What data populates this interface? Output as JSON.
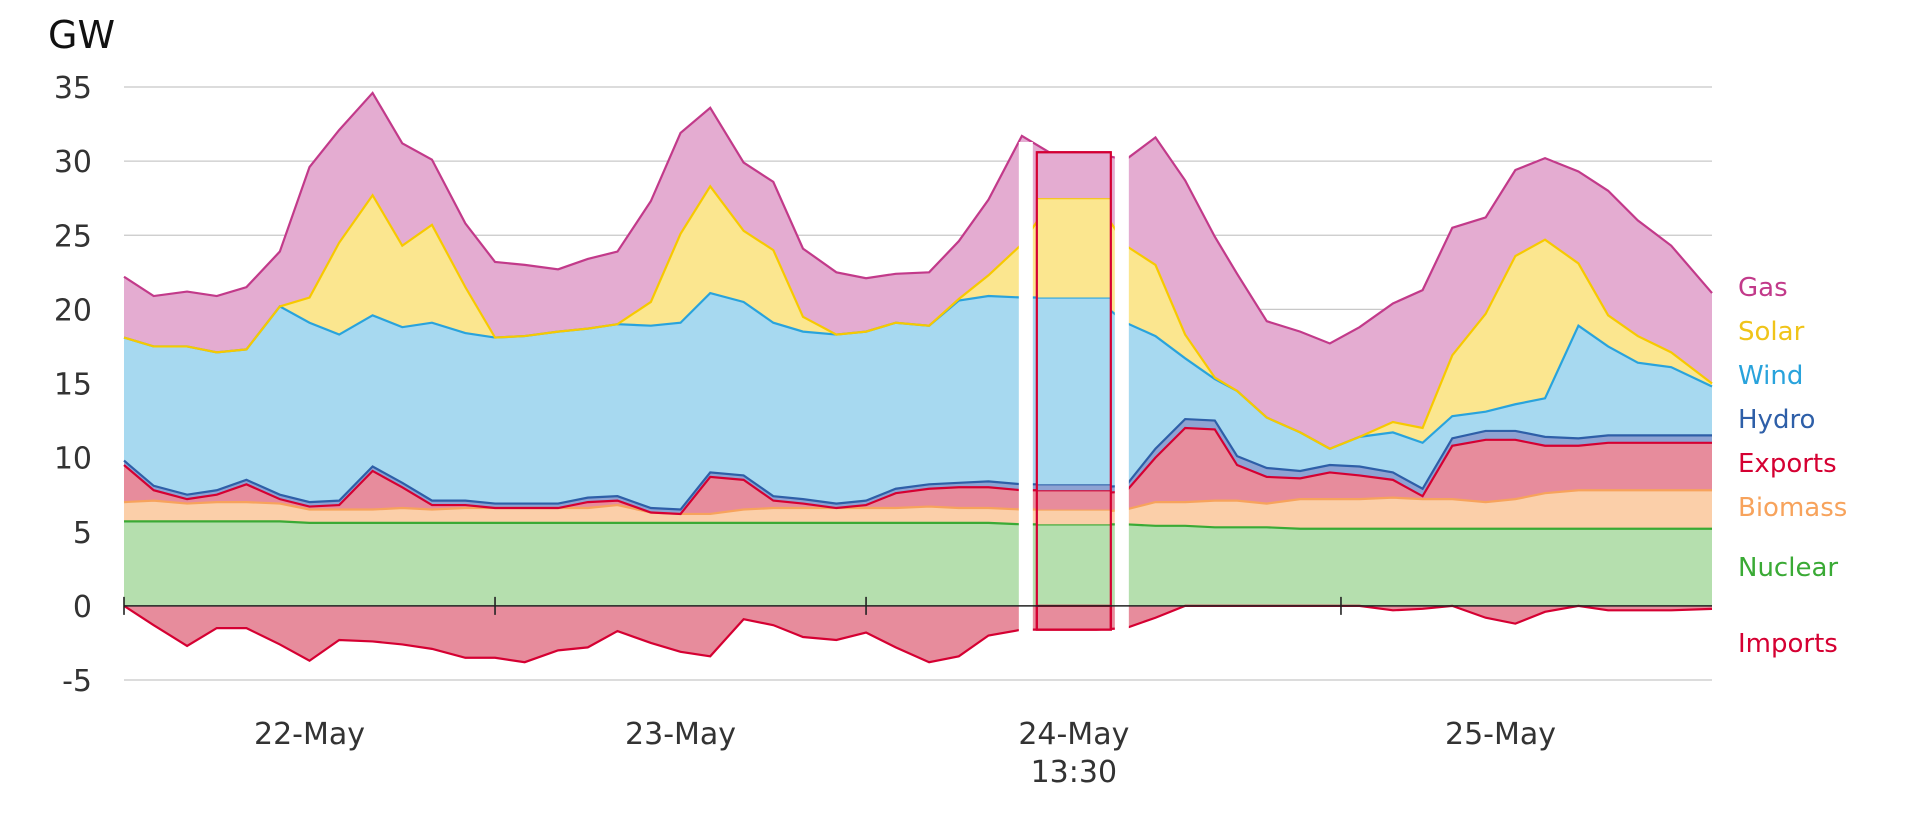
{
  "chart_data": {
    "type": "area",
    "ylabel": "GW",
    "ylim": [
      -5,
      35
    ],
    "yticks": [
      -5,
      0,
      5,
      10,
      15,
      20,
      25,
      30,
      35
    ],
    "grid": true,
    "legend_position": "right",
    "x_tick_labels": [
      {
        "label": "22-May",
        "sub": "",
        "at": 0.5
      },
      {
        "label": "23-May",
        "sub": "",
        "at": 1.5
      },
      {
        "label": "24-May",
        "sub": "13:30",
        "at": 2.56
      },
      {
        "label": "25-May",
        "sub": "",
        "at": 3.71
      }
    ],
    "x_axis_ticks": [
      0,
      1,
      2,
      3.28
    ],
    "x_range": [
      0,
      4.28
    ],
    "highlight": {
      "label": "24-May 13:30",
      "at": 2.56
    },
    "x": [
      0.0,
      0.08,
      0.17,
      0.25,
      0.33,
      0.42,
      0.5,
      0.58,
      0.67,
      0.75,
      0.83,
      0.92,
      1.0,
      1.08,
      1.17,
      1.25,
      1.33,
      1.42,
      1.5,
      1.58,
      1.67,
      1.75,
      1.83,
      1.92,
      2.0,
      2.08,
      2.17,
      2.25,
      2.33,
      2.42,
      2.5,
      2.56,
      2.62,
      2.7,
      2.78,
      2.86,
      2.94,
      3.0,
      3.08,
      3.17,
      3.25,
      3.33,
      3.42,
      3.5,
      3.58,
      3.67,
      3.75,
      3.83,
      3.92,
      4.0,
      4.08,
      4.17,
      4.28
    ],
    "series": [
      {
        "name": "Nuclear",
        "color": "#3aaa35",
        "fill": "#b5dfae",
        "values": [
          5.7,
          5.7,
          5.7,
          5.7,
          5.7,
          5.7,
          5.6,
          5.6,
          5.6,
          5.6,
          5.6,
          5.6,
          5.6,
          5.6,
          5.6,
          5.6,
          5.6,
          5.6,
          5.6,
          5.6,
          5.6,
          5.6,
          5.6,
          5.6,
          5.6,
          5.6,
          5.6,
          5.6,
          5.6,
          5.5,
          5.5,
          5.5,
          5.5,
          5.5,
          5.4,
          5.4,
          5.3,
          5.3,
          5.3,
          5.2,
          5.2,
          5.2,
          5.2,
          5.2,
          5.2,
          5.2,
          5.2,
          5.2,
          5.2,
          5.2,
          5.2,
          5.2,
          5.2
        ]
      },
      {
        "name": "Biomass",
        "color": "#f7a35c",
        "fill": "#fbcfa9",
        "values": [
          1.3,
          1.4,
          1.2,
          1.3,
          1.3,
          1.2,
          0.9,
          0.9,
          0.9,
          1.0,
          0.9,
          1.0,
          1.0,
          1.0,
          1.0,
          1.0,
          1.2,
          0.7,
          0.6,
          0.6,
          0.9,
          1.0,
          1.0,
          1.0,
          1.0,
          1.0,
          1.1,
          1.0,
          1.0,
          1.0,
          1.0,
          1.0,
          0.8,
          1.0,
          1.6,
          1.6,
          1.8,
          1.8,
          1.6,
          2.0,
          2.0,
          2.0,
          2.1,
          2.0,
          2.0,
          1.8,
          2.0,
          2.4,
          2.6,
          2.6,
          2.6,
          2.6,
          2.6
        ]
      },
      {
        "name": "Exports",
        "color": "#d50032",
        "fill": "#e78c9c",
        "values": [
          2.5,
          0.7,
          0.3,
          0.5,
          1.2,
          0.3,
          0.2,
          0.3,
          2.6,
          1.4,
          0.3,
          0.2,
          0.0,
          0.0,
          0.0,
          0.4,
          0.3,
          0.0,
          0.0,
          2.5,
          2.0,
          0.5,
          0.3,
          0.0,
          0.2,
          1.0,
          1.2,
          1.4,
          1.4,
          1.3,
          1.3,
          1.3,
          1.3,
          1.2,
          3.0,
          5.0,
          4.8,
          2.4,
          1.8,
          1.4,
          1.8,
          1.6,
          1.2,
          0.2,
          3.6,
          4.2,
          4.0,
          3.2,
          3.0,
          3.2,
          3.2,
          3.2,
          3.2
        ]
      },
      {
        "name": "Hydro",
        "color": "#2e5fa8",
        "fill": "#8ea3d3",
        "values": [
          0.3,
          0.3,
          0.3,
          0.3,
          0.3,
          0.3,
          0.3,
          0.3,
          0.3,
          0.3,
          0.3,
          0.3,
          0.3,
          0.3,
          0.3,
          0.3,
          0.3,
          0.3,
          0.3,
          0.3,
          0.3,
          0.3,
          0.3,
          0.3,
          0.3,
          0.3,
          0.3,
          0.3,
          0.4,
          0.4,
          0.4,
          0.4,
          0.4,
          0.4,
          0.6,
          0.6,
          0.6,
          0.6,
          0.6,
          0.5,
          0.5,
          0.6,
          0.5,
          0.5,
          0.5,
          0.6,
          0.6,
          0.6,
          0.5,
          0.5,
          0.5,
          0.5,
          0.5
        ]
      },
      {
        "name": "Wind",
        "color": "#29a3dc",
        "fill": "#a7d9f0",
        "values": [
          8.3,
          9.4,
          10.0,
          9.3,
          8.8,
          12.7,
          12.1,
          11.2,
          10.2,
          10.5,
          12.0,
          11.3,
          11.2,
          11.3,
          11.6,
          11.4,
          11.6,
          12.3,
          12.6,
          12.1,
          11.7,
          11.7,
          11.3,
          11.4,
          11.4,
          11.2,
          10.7,
          12.3,
          12.5,
          12.6,
          12.6,
          12.6,
          12.7,
          11.0,
          7.6,
          4.1,
          2.8,
          4.4,
          3.4,
          2.6,
          1.1,
          2.0,
          2.7,
          3.1,
          1.5,
          1.3,
          1.8,
          2.6,
          7.6,
          6.0,
          4.9,
          4.6,
          3.3
        ]
      },
      {
        "name": "Solar",
        "color": "#f7c900",
        "fill": "#fbe68f",
        "values": [
          0.0,
          0.0,
          0.0,
          0.0,
          0.0,
          0.0,
          1.7,
          6.2,
          8.1,
          5.5,
          6.6,
          3.1,
          0.0,
          0.0,
          0.0,
          0.0,
          0.0,
          1.6,
          6.0,
          7.2,
          4.8,
          4.9,
          1.0,
          0.0,
          0.0,
          0.0,
          0.0,
          0.1,
          1.4,
          3.6,
          6.6,
          6.7,
          6.7,
          5.2,
          4.8,
          1.6,
          0.1,
          0.0,
          0.0,
          0.0,
          0.0,
          0.0,
          0.7,
          1.0,
          4.1,
          6.6,
          10.0,
          10.7,
          4.2,
          2.1,
          1.8,
          1.0,
          0.2
        ]
      },
      {
        "name": "Gas",
        "color": "#c23a8a",
        "fill": "#e4acd1",
        "values": [
          4.1,
          3.4,
          3.7,
          3.8,
          4.2,
          3.7,
          8.8,
          7.6,
          6.9,
          6.9,
          4.4,
          4.3,
          5.1,
          4.8,
          4.2,
          4.7,
          4.9,
          6.8,
          6.8,
          5.3,
          4.6,
          4.6,
          4.6,
          4.2,
          3.6,
          3.3,
          3.6,
          3.9,
          5.1,
          7.3,
          3.1,
          3.1,
          3.1,
          5.8,
          8.6,
          10.4,
          9.5,
          7.9,
          6.5,
          6.8,
          7.1,
          7.4,
          8.0,
          9.3,
          8.6,
          6.5,
          5.8,
          5.5,
          6.2,
          8.4,
          7.8,
          7.2,
          6.1
        ]
      },
      {
        "name": "Imports",
        "color": "#d50032",
        "fill": "#e78c9c",
        "values": [
          0.0,
          -1.3,
          -2.7,
          -1.5,
          -1.5,
          -2.6,
          -3.7,
          -2.3,
          -2.4,
          -2.6,
          -2.9,
          -3.5,
          -3.5,
          -3.8,
          -3.0,
          -2.8,
          -1.7,
          -2.5,
          -3.1,
          -3.4,
          -0.9,
          -1.3,
          -2.1,
          -2.3,
          -1.8,
          -2.8,
          -3.8,
          -3.4,
          -2.0,
          -1.6,
          -1.6,
          -1.6,
          -1.6,
          -1.5,
          -0.8,
          0.0,
          0.0,
          0.0,
          0.0,
          0.0,
          0.0,
          0.0,
          -0.3,
          -0.2,
          0.0,
          -0.8,
          -1.2,
          -0.4,
          0.0,
          -0.3,
          -0.3,
          -0.3,
          -0.2
        ]
      }
    ],
    "legend": [
      {
        "label": "Gas",
        "color": "#c23a8a"
      },
      {
        "label": "Solar",
        "color": "#f0c419"
      },
      {
        "label": "Wind",
        "color": "#29a3dc"
      },
      {
        "label": "Hydro",
        "color": "#2e5fa8"
      },
      {
        "label": "Exports",
        "color": "#d50032"
      },
      {
        "label": "Biomass",
        "color": "#f7a35c"
      },
      {
        "label": "Nuclear",
        "color": "#3aaa35"
      },
      {
        "label": "Imports",
        "color": "#d50032"
      }
    ]
  }
}
